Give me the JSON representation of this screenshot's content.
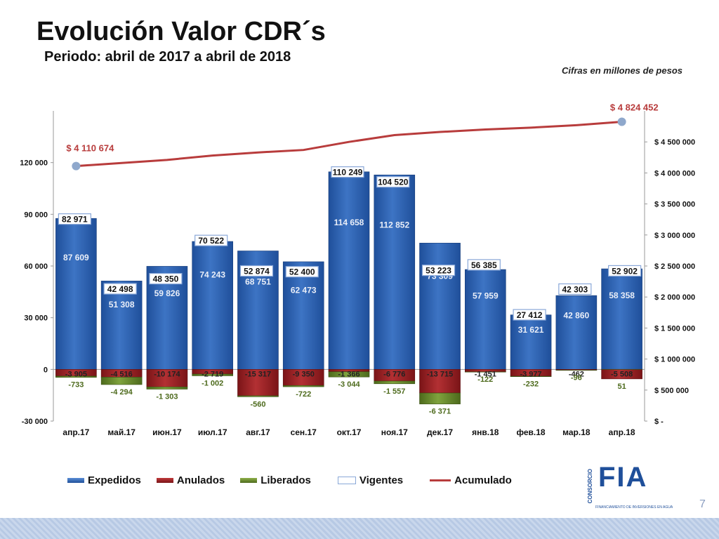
{
  "header": {
    "title": "Evolución Valor CDR´s",
    "subtitle": "Periodo:  abril de 2017 a abril de 2018",
    "note": "Cifras en millones de pesos"
  },
  "colors": {
    "expedidos": "#2e63b0",
    "anulados": "#9e2326",
    "liberados": "#6b8c2e",
    "vigentes_border": "#8aa8d8",
    "acumulado": "#b83c3c",
    "acumulado_marker": "#8fa8cc"
  },
  "chart_data": {
    "type": "bar",
    "categories": [
      "апр.17",
      "май.17",
      "июн.17",
      "июл.17",
      "авг.17",
      "сен.17",
      "окт.17",
      "ноя.17",
      "дек.17",
      "янв.18",
      "фев.18",
      "мар.18",
      "апр.18"
    ],
    "ylim": [
      -30000,
      150000
    ],
    "y_ticks": [
      -30000,
      0,
      30000,
      60000,
      90000,
      120000
    ],
    "y_tick_labels": [
      "-30 000",
      "0",
      "30 000",
      "60 000",
      "90 000",
      "120 000"
    ],
    "y2lim": [
      0,
      5000000
    ],
    "y2_ticks": [
      0,
      500000,
      1000000,
      1500000,
      2000000,
      2500000,
      3000000,
      3500000,
      4000000,
      4500000
    ],
    "y2_tick_labels": [
      "$ -",
      "$ 500 000",
      "$ 1 000 000",
      "$ 1 500 000",
      "$ 2 000 000",
      "$ 2 500 000",
      "$ 3 000 000",
      "$ 3 500 000",
      "$ 4 000 000",
      "$ 4 500 000"
    ],
    "series": [
      {
        "name": "Expedidos",
        "values": [
          87609,
          51308,
          59826,
          74243,
          68751,
          62473,
          114658,
          112852,
          73309,
          57959,
          31621,
          42860,
          58358
        ],
        "labels": [
          "87 609",
          "51 308",
          "59 826",
          "74 243",
          "68 751",
          "62 473",
          "114 658",
          "112 852",
          "73 309",
          "57 959",
          "31 621",
          "42 860",
          "58 358"
        ]
      },
      {
        "name": "Anulados",
        "values": [
          -3905,
          -4516,
          -10174,
          -2719,
          -15317,
          -9350,
          -1366,
          -6776,
          -13715,
          -1451,
          -3977,
          -462,
          -5508
        ],
        "labels": [
          "-3 905",
          "-4 516",
          "-10 174",
          "-2 719",
          "-15 317",
          "-9 350",
          "-1 366",
          "-6 776",
          "-13 715",
          "-1 451",
          "-3 977",
          "-462",
          "-5 508"
        ]
      },
      {
        "name": "Liberados",
        "values": [
          -733,
          -4294,
          -1303,
          -1002,
          -560,
          -722,
          -3044,
          -1557,
          -6371,
          -122,
          -232,
          -96,
          51
        ],
        "labels": [
          "-733",
          "-4 294",
          "-1 303",
          "-1 002",
          "-560",
          "-722",
          "-3 044",
          "-1 557",
          "-6 371",
          "-122",
          "-232",
          "-96",
          "51"
        ]
      },
      {
        "name": "Vigentes",
        "values": [
          82971,
          42498,
          48350,
          70522,
          52874,
          52400,
          110249,
          104520,
          53223,
          56385,
          27412,
          42303,
          52902
        ],
        "labels": [
          "82 971",
          "42 498",
          "48 350",
          "70 522",
          "52 874",
          "52 400",
          "110 249",
          "104 520",
          "53 223",
          "56 385",
          "27 412",
          "42 303",
          "52 902"
        ]
      },
      {
        "name": "Acumulado",
        "axis": "secondary",
        "values": [
          4110674,
          4160000,
          4210000,
          4280000,
          4330000,
          4370000,
          4500000,
          4610000,
          4660000,
          4700000,
          4730000,
          4770000,
          4824452
        ]
      }
    ],
    "annotations": {
      "first_acumulado": "$ 4 110 674",
      "last_acumulado": "$ 4 824 452"
    }
  },
  "legend": [
    "Expedidos",
    "Anulados",
    "Liberados",
    "Vigentes",
    "Acumulado"
  ],
  "logo": {
    "brand": "FIA",
    "side": "CONSORCIO",
    "tagline": "FINANCIAMIENTO DE INVERSIONES EN AGUA"
  },
  "page_number": "7"
}
